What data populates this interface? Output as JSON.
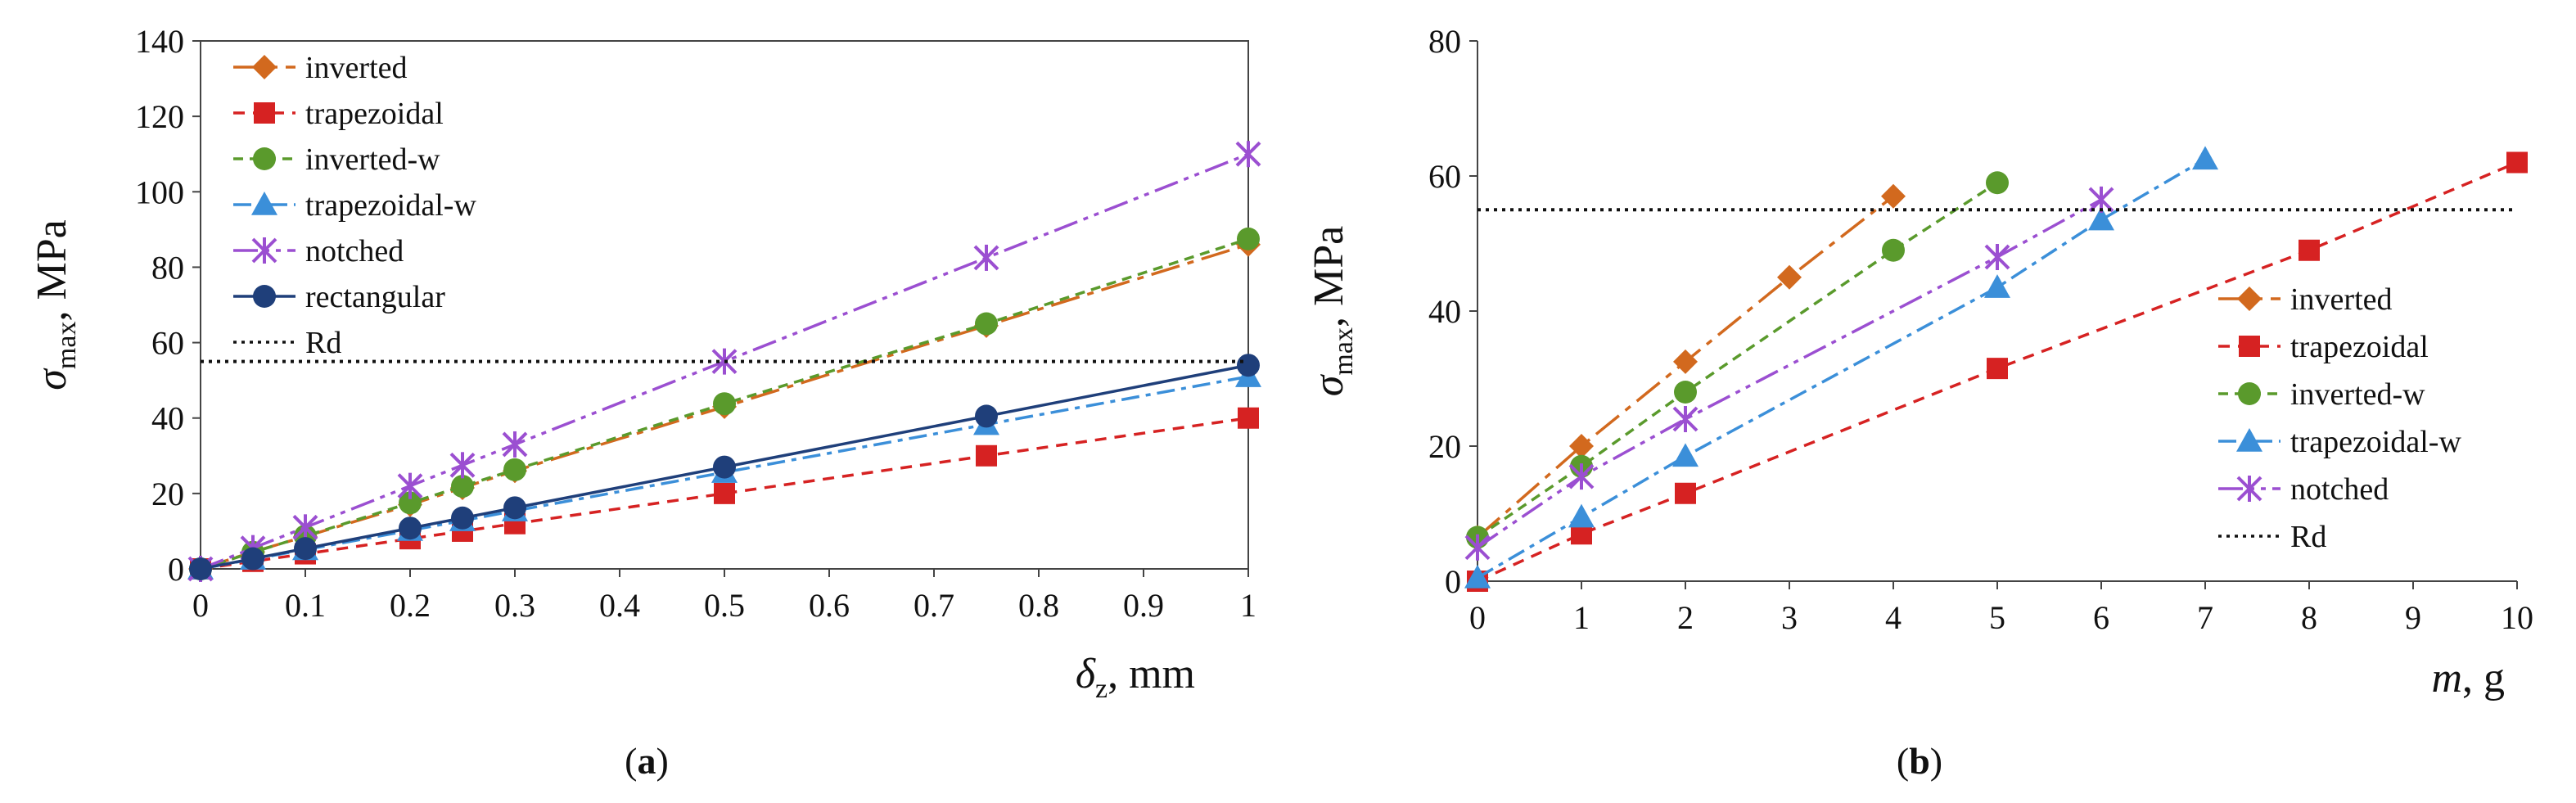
{
  "panels": [
    {
      "id": "a",
      "caption": "(a)",
      "caption_letter": "a",
      "ylabel_main": "σ",
      "ylabel_sub": "max",
      "ylabel_unit": ", MPa",
      "xlabel_main": "δ",
      "xlabel_sub": "z",
      "xlabel_unit": ", mm"
    },
    {
      "id": "b",
      "caption": "(b)",
      "caption_letter": "b",
      "ylabel_main": "σ",
      "ylabel_sub": "max",
      "ylabel_unit": ", MPa",
      "xlabel_main": "m",
      "xlabel_sub": "",
      "xlabel_unit": ", g"
    }
  ],
  "chart_data": [
    {
      "type": "line",
      "panel": "a",
      "xlim": [
        0,
        1
      ],
      "ylim": [
        0,
        140
      ],
      "x_ticks": [
        "0",
        "0.1",
        "0.2",
        "0.3",
        "0.4",
        "0.5",
        "0.6",
        "0.7",
        "0.8",
        "0.9",
        "1"
      ],
      "y_ticks": [
        "0",
        "20",
        "40",
        "60",
        "80",
        "100",
        "120",
        "140"
      ],
      "legend_position": "top-left",
      "grid": false,
      "series": [
        {
          "name": "inverted",
          "color": "#d2691e",
          "marker": "diamond",
          "dash": "36,10,8,10",
          "x": [
            0,
            0.05,
            0.1,
            0.2,
            0.25,
            0.3,
            0.5,
            0.75,
            1
          ],
          "y": [
            0,
            4.5,
            8.6,
            17,
            21.5,
            26,
            43,
            64.5,
            86
          ]
        },
        {
          "name": "trapezoidal",
          "color": "#d62222",
          "marker": "square",
          "dash": "14,10",
          "x": [
            0,
            0.05,
            0.1,
            0.2,
            0.25,
            0.3,
            0.5,
            0.75,
            1
          ],
          "y": [
            0,
            2,
            4,
            8,
            10,
            12,
            20,
            30,
            40
          ]
        },
        {
          "name": "inverted-w",
          "color": "#5a9a2c",
          "marker": "circle",
          "dash": "12,8",
          "x": [
            0,
            0.05,
            0.1,
            0.2,
            0.25,
            0.3,
            0.5,
            0.75,
            1
          ],
          "y": [
            0,
            4.4,
            8.7,
            17.5,
            21.9,
            26.3,
            43.8,
            65,
            87.5
          ]
        },
        {
          "name": "trapezoidal-w",
          "color": "#3b8fd9",
          "marker": "triangle",
          "dash": "22,8,6,8",
          "x": [
            0,
            0.05,
            0.1,
            0.2,
            0.25,
            0.3,
            0.5,
            0.75,
            1
          ],
          "y": [
            0,
            2.6,
            5.1,
            10.2,
            12.8,
            15.4,
            25.6,
            38.3,
            51
          ]
        },
        {
          "name": "notched",
          "color": "#9b4fd1",
          "marker": "star",
          "dash": "30,8,6,8,6,8",
          "x": [
            0,
            0.05,
            0.1,
            0.2,
            0.25,
            0.3,
            0.5,
            0.75,
            1
          ],
          "y": [
            0,
            5.5,
            11,
            22,
            27.5,
            33,
            55,
            82.5,
            110
          ]
        },
        {
          "name": "rectangular",
          "color": "#1f3f7a",
          "marker": "circle",
          "dash": "",
          "x": [
            0,
            0.05,
            0.1,
            0.2,
            0.25,
            0.3,
            0.5,
            0.75,
            1
          ],
          "y": [
            0,
            2.7,
            5.4,
            10.8,
            13.5,
            16.2,
            27,
            40.5,
            54
          ]
        },
        {
          "name": "Rd",
          "color": "#111111",
          "marker": "none",
          "dash": "4,6",
          "role": "reference",
          "x": [
            0,
            1
          ],
          "y": [
            55,
            55
          ]
        }
      ]
    },
    {
      "type": "line",
      "panel": "b",
      "xlim": [
        0,
        10
      ],
      "ylim": [
        0,
        80
      ],
      "x_ticks": [
        "0",
        "1",
        "2",
        "3",
        "4",
        "5",
        "6",
        "7",
        "8",
        "9",
        "10"
      ],
      "y_ticks": [
        "0",
        "20",
        "40",
        "60",
        "80"
      ],
      "legend_position": "right",
      "grid": false,
      "series": [
        {
          "name": "inverted",
          "color": "#d2691e",
          "marker": "diamond",
          "dash": "36,10,8,10",
          "x": [
            0,
            1,
            2,
            3,
            4
          ],
          "y": [
            6.5,
            20,
            32.5,
            45,
            57
          ]
        },
        {
          "name": "trapezoidal",
          "color": "#d62222",
          "marker": "square",
          "dash": "14,10",
          "x": [
            0,
            1,
            2,
            5,
            8,
            10
          ],
          "y": [
            0,
            7,
            13,
            31.5,
            49,
            62
          ]
        },
        {
          "name": "inverted-w",
          "color": "#5a9a2c",
          "marker": "circle",
          "dash": "12,8",
          "x": [
            0,
            1,
            2,
            4,
            5
          ],
          "y": [
            6.5,
            17,
            28,
            49,
            59
          ]
        },
        {
          "name": "trapezoidal-w",
          "color": "#3b8fd9",
          "marker": "triangle",
          "dash": "22,8,6,8",
          "x": [
            0,
            1,
            2,
            5,
            6,
            7
          ],
          "y": [
            0.5,
            9.5,
            18.5,
            43.5,
            53.5,
            62.5
          ]
        },
        {
          "name": "notched",
          "color": "#9b4fd1",
          "marker": "star",
          "dash": "30,8,6,8,6,8",
          "x": [
            0,
            1,
            2,
            5,
            6
          ],
          "y": [
            5,
            15.5,
            24,
            48,
            56.5
          ]
        },
        {
          "name": "Rd",
          "color": "#111111",
          "marker": "none",
          "dash": "4,6",
          "role": "reference",
          "x": [
            0,
            10
          ],
          "y": [
            55,
            55
          ]
        }
      ]
    }
  ]
}
